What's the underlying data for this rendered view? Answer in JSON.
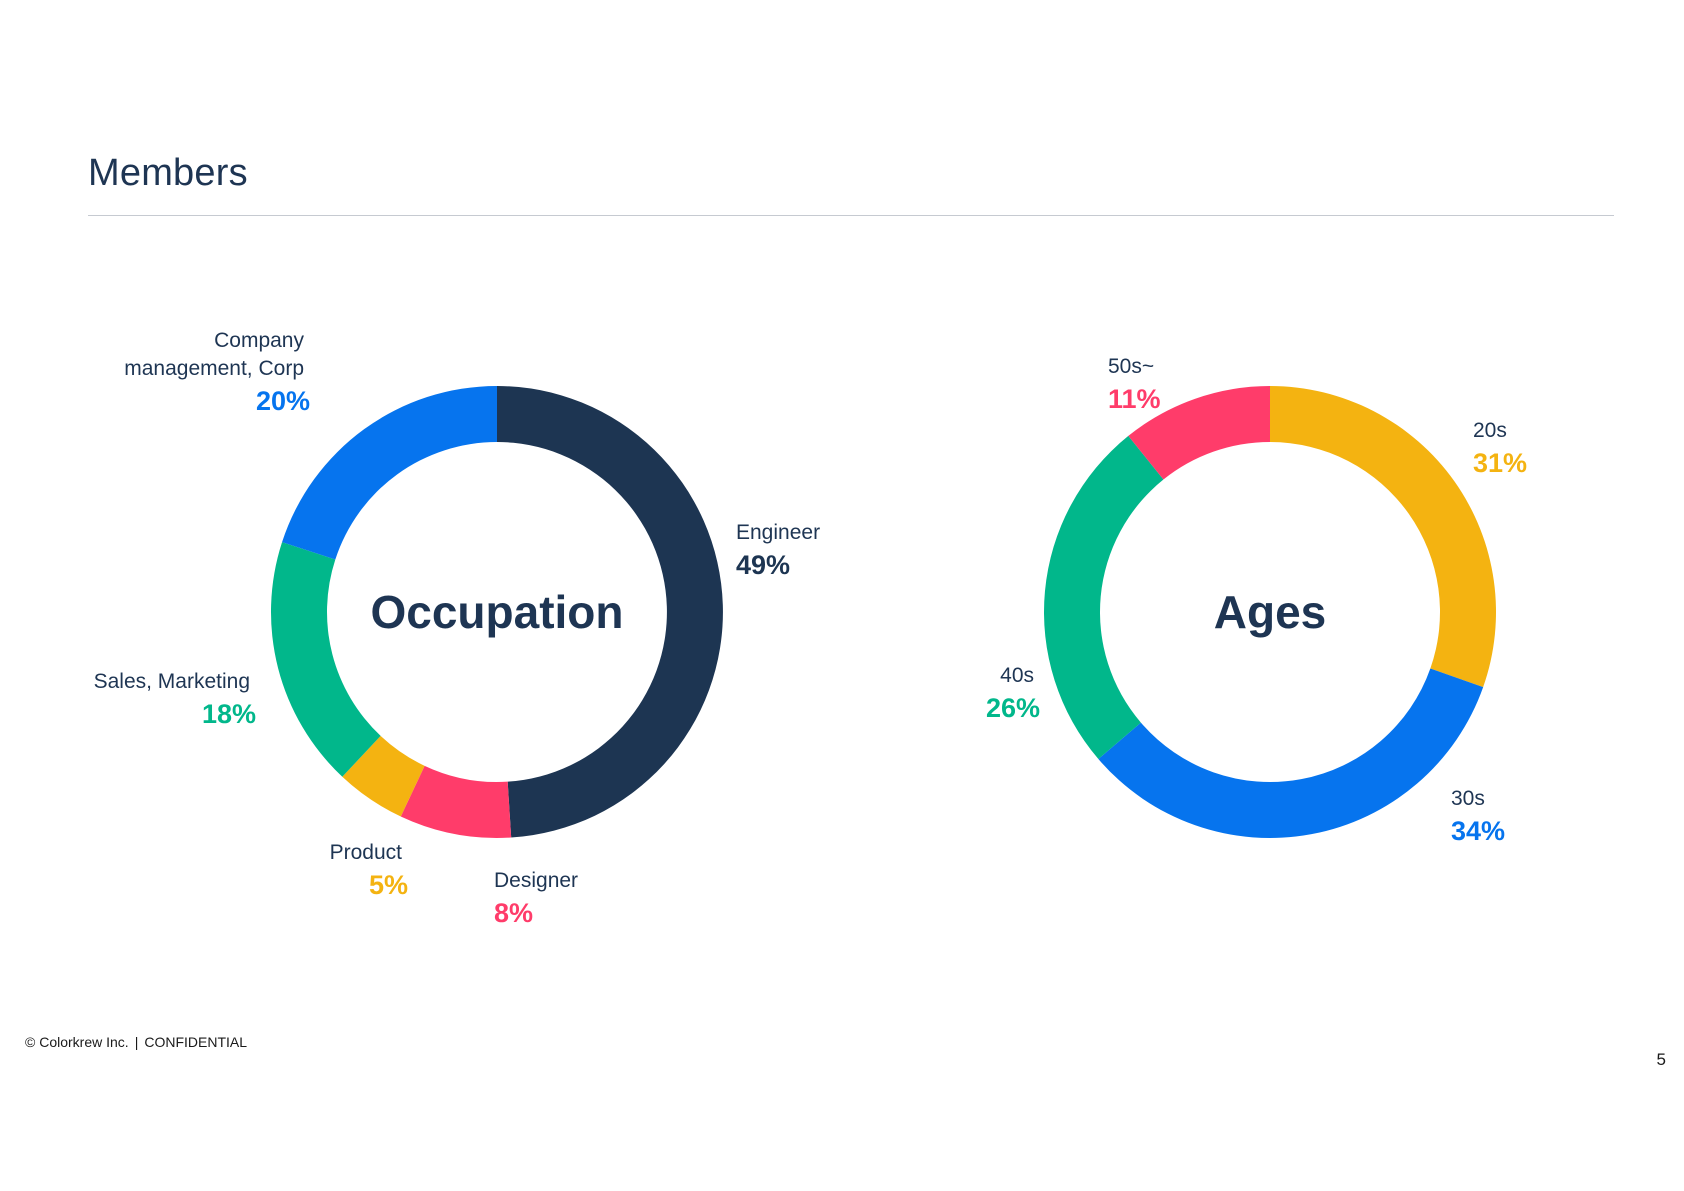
{
  "page": {
    "title": "Members"
  },
  "footer": {
    "copyright": "© Colorkrew Inc.",
    "separator": "|",
    "confidential": "CONFIDENTIAL",
    "page_number": "5"
  },
  "colors": {
    "navy": "#1d3552",
    "blue": "#0674ee",
    "green": "#01b78b",
    "yellow": "#f4b311",
    "pink": "#ff3c6a",
    "text": "#1e3553"
  },
  "chart_data": [
    {
      "type": "pie",
      "title": "Occupation",
      "donut": true,
      "start": "top",
      "direction": "clockwise",
      "slices": [
        {
          "label": "Engineer",
          "label_lines": [
            "Engineer"
          ],
          "value": 49,
          "display": "49%",
          "color": "#1d3552",
          "label_align": "left"
        },
        {
          "label": "Designer",
          "label_lines": [
            "Designer"
          ],
          "value": 8,
          "display": "8%",
          "color": "#ff3c6a",
          "label_align": "left"
        },
        {
          "label": "Product",
          "label_lines": [
            "Product"
          ],
          "value": 5,
          "display": "5%",
          "color": "#f4b311",
          "label_align": "right"
        },
        {
          "label": "Sales, Marketing",
          "label_lines": [
            "Sales, Marketing"
          ],
          "value": 18,
          "display": "18%",
          "color": "#01b78b",
          "label_align": "right"
        },
        {
          "label": "Company management, Corp",
          "label_lines": [
            "Company",
            "management, Corp"
          ],
          "value": 20,
          "display": "20%",
          "color": "#0674ee",
          "label_align": "right"
        }
      ]
    },
    {
      "type": "pie",
      "title": "Ages",
      "donut": true,
      "start": "top",
      "direction": "clockwise",
      "slices": [
        {
          "label": "20s",
          "label_lines": [
            "20s"
          ],
          "value": 31,
          "display": "31%",
          "color": "#f4b311",
          "label_align": "left"
        },
        {
          "label": "30s",
          "label_lines": [
            "30s"
          ],
          "value": 34,
          "display": "34%",
          "color": "#0674ee",
          "label_align": "left"
        },
        {
          "label": "40s",
          "label_lines": [
            "40s"
          ],
          "value": 26,
          "display": "26%",
          "color": "#01b78b",
          "label_align": "right"
        },
        {
          "label": "50s~",
          "label_lines": [
            "50s~"
          ],
          "value": 11,
          "display": "11%",
          "color": "#ff3c6a",
          "label_align": "left"
        }
      ]
    }
  ]
}
